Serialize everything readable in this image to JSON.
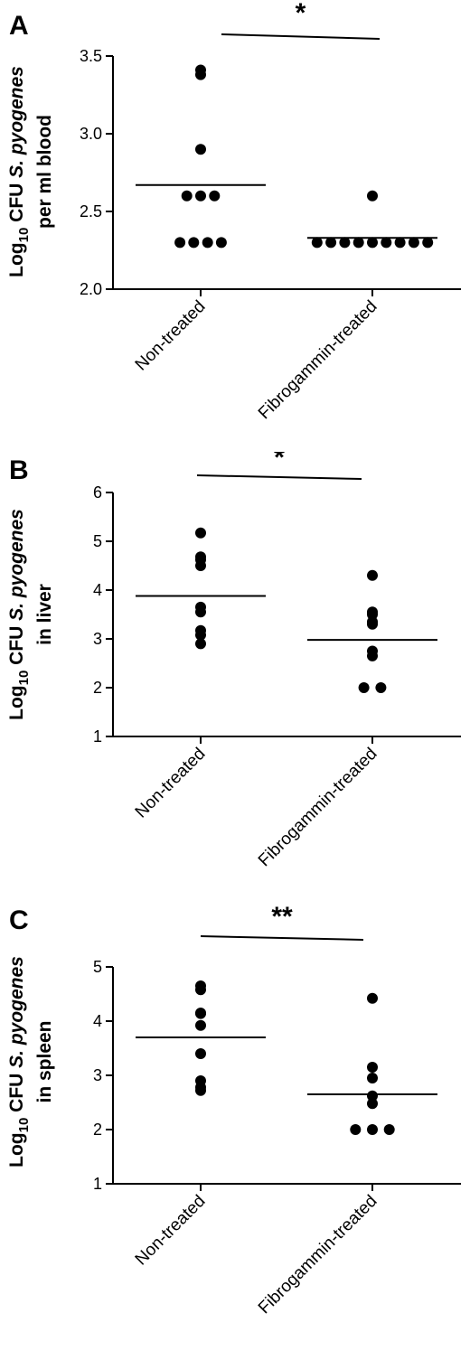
{
  "chart_data": [
    {
      "type": "scatter",
      "panel": "A",
      "ylabel": {
        "prefix": "Log",
        "sub": "10",
        "line1_rest": " CFU ",
        "species": "S. pyogenes",
        "line2": "per ml blood"
      },
      "ylim": [
        2.0,
        3.5
      ],
      "yticks": [
        2.0,
        2.5,
        3.0,
        3.5
      ],
      "ytick_labels": [
        "2.0",
        "2.5",
        "3.0",
        "3.5"
      ],
      "categories": [
        "Non-treated",
        "Fibrogammin-treated"
      ],
      "points": [
        [
          3.41,
          3.38,
          2.9,
          2.6,
          2.6,
          2.6,
          2.3,
          2.3,
          2.3,
          2.3
        ],
        [
          2.6,
          2.3,
          2.3,
          2.3,
          2.3,
          2.3,
          2.3,
          2.3,
          2.3,
          2.3
        ]
      ],
      "means": [
        2.67,
        2.33
      ],
      "significance": "*",
      "grid": false
    },
    {
      "type": "scatter",
      "panel": "B",
      "ylabel": {
        "prefix": "Log",
        "sub": "10",
        "line1_rest": " CFU ",
        "species": "S. pyogenes",
        "line2": "in liver"
      },
      "ylim": [
        1,
        6
      ],
      "yticks": [
        1,
        2,
        3,
        4,
        5,
        6
      ],
      "ytick_labels": [
        "1",
        "2",
        "3",
        "4",
        "5",
        "6"
      ],
      "categories": [
        "Non-treated",
        "Fibrogammin-treated"
      ],
      "points": [
        [
          5.17,
          4.68,
          4.62,
          4.5,
          3.65,
          3.55,
          3.17,
          3.08,
          2.9
        ],
        [
          4.3,
          3.55,
          3.5,
          3.35,
          3.3,
          2.75,
          2.65,
          2.0,
          2.0
        ]
      ],
      "means": [
        3.88,
        2.98
      ],
      "significance": "*",
      "grid": false
    },
    {
      "type": "scatter",
      "panel": "C",
      "ylabel": {
        "prefix": "Log",
        "sub": "10",
        "line1_rest": " CFU ",
        "species": "S. pyogenes",
        "line2": "in spleen"
      },
      "ylim": [
        1,
        5
      ],
      "yticks": [
        1,
        2,
        3,
        4,
        5
      ],
      "ytick_labels": [
        "1",
        "2",
        "3",
        "4",
        "5"
      ],
      "categories": [
        "Non-treated",
        "Fibrogammin-treated"
      ],
      "points": [
        [
          4.65,
          4.58,
          4.15,
          4.14,
          3.92,
          3.4,
          2.9,
          2.78,
          2.72
        ],
        [
          4.42,
          3.15,
          2.95,
          2.62,
          2.48,
          2.0,
          2.0,
          2.0
        ]
      ],
      "means": [
        3.7,
        2.65
      ],
      "significance": "**",
      "grid": false
    }
  ]
}
